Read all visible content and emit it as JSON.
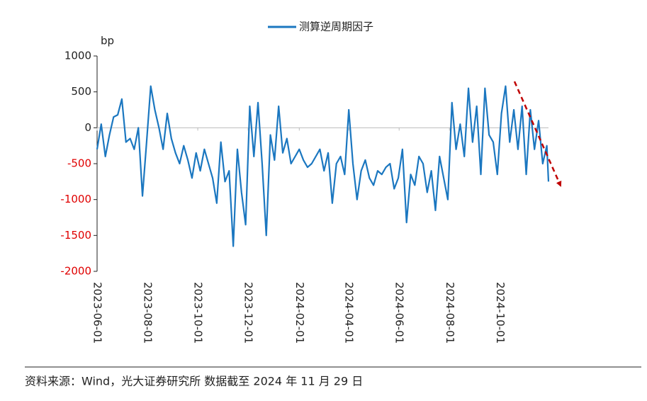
{
  "chart_data": {
    "type": "line",
    "legend": "测算逆周期因子",
    "ylabel": "bp",
    "source": "资料来源：Wind，光大证券研究所  数据截至 2024 年 11 月 29 日",
    "x": [
      "2023-06-01",
      "2023-06-06",
      "2023-06-11",
      "2023-06-16",
      "2023-06-21",
      "2023-06-26",
      "2023-07-01",
      "2023-07-06",
      "2023-07-11",
      "2023-07-16",
      "2023-07-21",
      "2023-07-26",
      "2023-07-31",
      "2023-08-05",
      "2023-08-10",
      "2023-08-15",
      "2023-08-20",
      "2023-08-25",
      "2023-08-30",
      "2023-09-04",
      "2023-09-09",
      "2023-09-14",
      "2023-09-19",
      "2023-09-24",
      "2023-09-29",
      "2023-10-04",
      "2023-10-09",
      "2023-10-14",
      "2023-10-19",
      "2023-10-24",
      "2023-10-29",
      "2023-11-03",
      "2023-11-08",
      "2023-11-13",
      "2023-11-18",
      "2023-11-23",
      "2023-11-28",
      "2023-12-03",
      "2023-12-08",
      "2023-12-13",
      "2023-12-18",
      "2023-12-23",
      "2023-12-28",
      "2024-01-02",
      "2024-01-07",
      "2024-01-12",
      "2024-01-17",
      "2024-01-22",
      "2024-01-27",
      "2024-02-01",
      "2024-02-06",
      "2024-02-11",
      "2024-02-16",
      "2024-02-21",
      "2024-02-26",
      "2024-03-02",
      "2024-03-07",
      "2024-03-12",
      "2024-03-17",
      "2024-03-22",
      "2024-03-27",
      "2024-04-01",
      "2024-04-06",
      "2024-04-11",
      "2024-04-16",
      "2024-04-21",
      "2024-04-26",
      "2024-05-01",
      "2024-05-06",
      "2024-05-11",
      "2024-05-16",
      "2024-05-21",
      "2024-05-26",
      "2024-05-31",
      "2024-06-05",
      "2024-06-10",
      "2024-06-15",
      "2024-06-20",
      "2024-06-25",
      "2024-06-30",
      "2024-07-05",
      "2024-07-10",
      "2024-07-15",
      "2024-07-20",
      "2024-07-25",
      "2024-07-30",
      "2024-08-04",
      "2024-08-09",
      "2024-08-14",
      "2024-08-19",
      "2024-08-24",
      "2024-08-29",
      "2024-09-03",
      "2024-09-08",
      "2024-09-13",
      "2024-09-18",
      "2024-09-23",
      "2024-09-28",
      "2024-10-03",
      "2024-10-08",
      "2024-10-13",
      "2024-10-18",
      "2024-10-23",
      "2024-10-28",
      "2024-11-02",
      "2024-11-07",
      "2024-11-12",
      "2024-11-17",
      "2024-11-22",
      "2024-11-27",
      "2024-11-29"
    ],
    "series": [
      {
        "name": "测算逆周期因子",
        "color": "#1b77c0",
        "values": [
          -300,
          50,
          -400,
          -100,
          150,
          180,
          400,
          -200,
          -150,
          -300,
          0,
          -950,
          -200,
          580,
          250,
          0,
          -300,
          200,
          -150,
          -350,
          -500,
          -250,
          -450,
          -700,
          -350,
          -600,
          -300,
          -500,
          -700,
          -1050,
          -200,
          -750,
          -600,
          -1650,
          -300,
          -900,
          -1350,
          300,
          -400,
          350,
          -500,
          -1500,
          -100,
          -450,
          300,
          -350,
          -150,
          -500,
          -400,
          -300,
          -450,
          -550,
          -500,
          -400,
          -300,
          -600,
          -350,
          -1050,
          -500,
          -400,
          -650,
          250,
          -500,
          -1000,
          -600,
          -450,
          -700,
          -800,
          -600,
          -650,
          -550,
          -500,
          -850,
          -700,
          -300,
          -1320,
          -650,
          -800,
          -400,
          -500,
          -900,
          -600,
          -1150,
          -400,
          -700,
          -1000,
          350,
          -300,
          50,
          -400,
          550,
          -200,
          300,
          -650,
          550,
          -100,
          -200,
          -650,
          200,
          580,
          -200,
          250,
          -300,
          300,
          -650,
          250,
          -300,
          100,
          -500,
          -250,
          -750
        ]
      }
    ],
    "xlim": [
      "2023-06-01",
      "2024-11-29"
    ],
    "xticks": [
      "2023-06-01",
      "2023-08-01",
      "2023-10-01",
      "2023-12-01",
      "2024-02-01",
      "2024-04-01",
      "2024-06-01",
      "2024-08-01",
      "2024-10-01"
    ],
    "ylim": [
      -2000,
      1000
    ],
    "yticks": [
      -2000,
      -1500,
      -1000,
      -500,
      0,
      500,
      1000
    ],
    "negative_tick_color": "#e00000"
  }
}
